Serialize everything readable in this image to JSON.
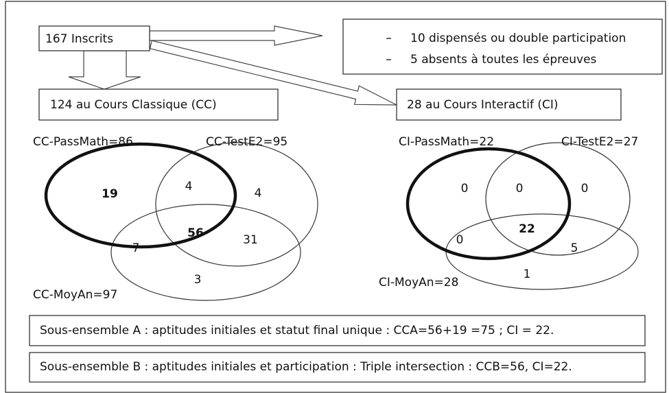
{
  "boxes": {
    "enrolled": "167 Inscrits",
    "excluded": [
      "10 dispensés ou double participation",
      "5 absents à toutes les épreuves"
    ],
    "classic": "124 au Cours Classique (CC)",
    "interactive": "28 au Cours Interactif (CI)"
  },
  "venn_cc": {
    "labels": [
      "CC-PassMath=86",
      "CC-TestE2=95",
      "CC-MoyAn=97"
    ],
    "regions": {
      "passmath_only": 19,
      "passmath_teste2": 4,
      "teste2_only": 4,
      "all_three": 56,
      "passmath_moyan": 7,
      "teste2_moyan": 31,
      "moyan_only": 3
    }
  },
  "venn_ci": {
    "labels": [
      "CI-PassMath=22",
      "CI-TestE2=27",
      "CI-MoyAn=28"
    ],
    "regions": {
      "passmath_only": 0,
      "passmath_teste2": 0,
      "teste2_only": 0,
      "all_three": 22,
      "passmath_moyan": 0,
      "teste2_moyan": 5,
      "moyan_only": 1
    }
  },
  "notes": [
    "Sous-ensemble A : aptitudes initiales et statut final unique : CCA=56+19 =75 ; CI = 22.",
    "Sous-ensemble B : aptitudes initiales et participation : Triple intersection : CCB=56, CI=22."
  ]
}
